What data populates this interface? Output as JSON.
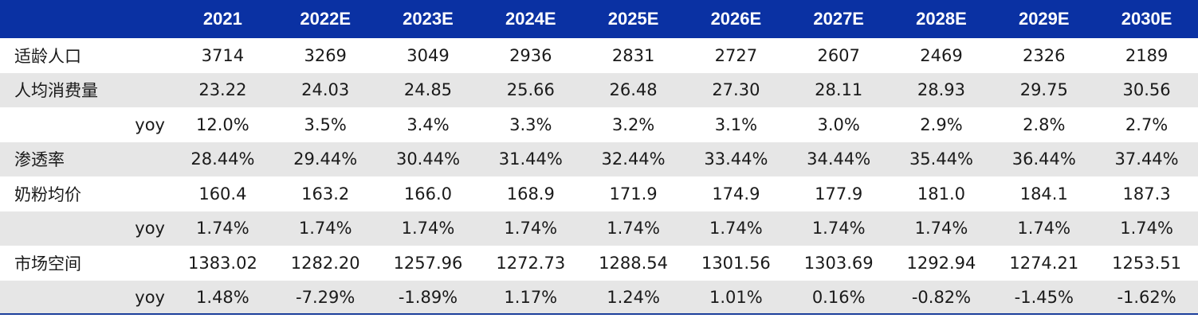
{
  "header": {
    "label": "",
    "sub": "",
    "years": [
      "2021",
      "2022E",
      "2023E",
      "2024E",
      "2025E",
      "2026E",
      "2027E",
      "2028E",
      "2029E",
      "2030E"
    ]
  },
  "rows": [
    {
      "label": "适龄人口",
      "sub": "",
      "values": [
        "3714",
        "3269",
        "3049",
        "2936",
        "2831",
        "2727",
        "2607",
        "2469",
        "2326",
        "2189"
      ]
    },
    {
      "label": "人均消费量",
      "sub": "",
      "values": [
        "23.22",
        "24.03",
        "24.85",
        "25.66",
        "26.48",
        "27.30",
        "28.11",
        "28.93",
        "29.75",
        "30.56"
      ]
    },
    {
      "label": "",
      "sub": "yoy",
      "values": [
        "12.0%",
        "3.5%",
        "3.4%",
        "3.3%",
        "3.2%",
        "3.1%",
        "3.0%",
        "2.9%",
        "2.8%",
        "2.7%"
      ]
    },
    {
      "label": "渗透率",
      "sub": "",
      "values": [
        "28.44%",
        "29.44%",
        "30.44%",
        "31.44%",
        "32.44%",
        "33.44%",
        "34.44%",
        "35.44%",
        "36.44%",
        "37.44%"
      ]
    },
    {
      "label": "奶粉均价",
      "sub": "",
      "values": [
        "160.4",
        "163.2",
        "166.0",
        "168.9",
        "171.9",
        "174.9",
        "177.9",
        "181.0",
        "184.1",
        "187.3"
      ]
    },
    {
      "label": "",
      "sub": "yoy",
      "values": [
        "1.74%",
        "1.74%",
        "1.74%",
        "1.74%",
        "1.74%",
        "1.74%",
        "1.74%",
        "1.74%",
        "1.74%",
        "1.74%"
      ]
    },
    {
      "label": "市场空间",
      "sub": "",
      "values": [
        "1383.02",
        "1282.20",
        "1257.96",
        "1272.73",
        "1288.54",
        "1301.56",
        "1303.69",
        "1292.94",
        "1274.21",
        "1253.51"
      ]
    },
    {
      "label": "",
      "sub": "yoy",
      "values": [
        "1.48%",
        "-7.29%",
        "-1.89%",
        "1.17%",
        "1.24%",
        "1.01%",
        "0.16%",
        "-0.82%",
        "-1.45%",
        "-1.62%"
      ]
    }
  ],
  "colors": {
    "header_bg": "#0a31a3",
    "header_text": "#ffffff",
    "stripe": "#e6e6e6",
    "rule": "#1c3f9c"
  }
}
